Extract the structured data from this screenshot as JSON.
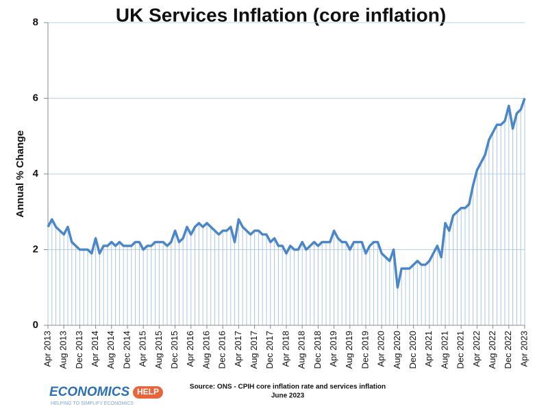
{
  "chart_data": {
    "type": "line",
    "title": "UK Services Inflation (core inflation)",
    "y_label": "Annual % Change",
    "source": "Source: ONS - CPIH core inflation rate and services inflation",
    "source_date": "June 2023",
    "logo_main": "ECONOMICS",
    "logo_badge": "HELP",
    "logo_tagline": "HELPING TO SIMPLIFY ECONOMICS",
    "color": "#4a86c8",
    "drop_color": "#a9c4e4",
    "grid": true,
    "ylim": [
      0,
      8
    ],
    "yticks": [
      0,
      2,
      4,
      6,
      8
    ],
    "categories": [
      "Apr 2013",
      null,
      null,
      null,
      "Aug 2013",
      null,
      null,
      null,
      "Dec 2013",
      null,
      null,
      null,
      "Apr 2014",
      null,
      null,
      null,
      "Aug 2014",
      null,
      null,
      null,
      "Dec 2014",
      null,
      null,
      null,
      "Apr 2015",
      null,
      null,
      null,
      "Aug 2015",
      null,
      null,
      null,
      "Dec 2015",
      null,
      null,
      null,
      "Apr 2016",
      null,
      null,
      null,
      "Aug 2016",
      null,
      null,
      null,
      "Dec 2016",
      null,
      null,
      null,
      "Apr 2017",
      null,
      null,
      null,
      "Aug 2017",
      null,
      null,
      null,
      "Dec 2017",
      null,
      null,
      null,
      "Apr 2018",
      null,
      null,
      null,
      "Aug 2018",
      null,
      null,
      null,
      "Dec 2018",
      null,
      null,
      null,
      "Apr 2019",
      null,
      null,
      null,
      "Aug 2019",
      null,
      null,
      null,
      "Dec 2019",
      null,
      null,
      null,
      "Apr 2020",
      null,
      null,
      null,
      "Aug 2020",
      null,
      null,
      null,
      "Dec 2020",
      null,
      null,
      null,
      "Apr 2021",
      null,
      null,
      null,
      "Aug 2021",
      null,
      null,
      null,
      "Dec 2021",
      null,
      null,
      null,
      "Apr 2022",
      null,
      null,
      null,
      "Aug 2022",
      null,
      null,
      null,
      "Dec 2022",
      null,
      null,
      null,
      "Apr 2023"
    ],
    "values": [
      2.6,
      2.8,
      2.6,
      2.5,
      2.4,
      2.6,
      2.2,
      2.1,
      2.0,
      2.0,
      2.0,
      1.9,
      2.3,
      1.9,
      2.1,
      2.1,
      2.2,
      2.1,
      2.2,
      2.1,
      2.1,
      2.1,
      2.2,
      2.2,
      2.0,
      2.1,
      2.1,
      2.2,
      2.2,
      2.2,
      2.1,
      2.2,
      2.5,
      2.2,
      2.3,
      2.6,
      2.4,
      2.6,
      2.7,
      2.6,
      2.7,
      2.6,
      2.5,
      2.4,
      2.5,
      2.5,
      2.6,
      2.2,
      2.8,
      2.6,
      2.5,
      2.4,
      2.5,
      2.5,
      2.4,
      2.4,
      2.2,
      2.3,
      2.1,
      2.1,
      1.9,
      2.1,
      2.0,
      2.0,
      2.2,
      2.0,
      2.1,
      2.2,
      2.1,
      2.2,
      2.2,
      2.2,
      2.5,
      2.3,
      2.2,
      2.2,
      2.0,
      2.2,
      2.2,
      2.2,
      1.9,
      2.1,
      2.2,
      2.2,
      1.9,
      1.8,
      1.7,
      2.0,
      1.0,
      1.5,
      1.5,
      1.5,
      1.6,
      1.7,
      1.6,
      1.6,
      1.7,
      1.9,
      2.1,
      1.8,
      2.7,
      2.5,
      2.9,
      3.0,
      3.1,
      3.1,
      3.2,
      3.7,
      4.1,
      4.3,
      4.5,
      4.9,
      5.1,
      5.3,
      5.3,
      5.4,
      5.8,
      5.2,
      5.6,
      5.7,
      6.0
    ]
  }
}
